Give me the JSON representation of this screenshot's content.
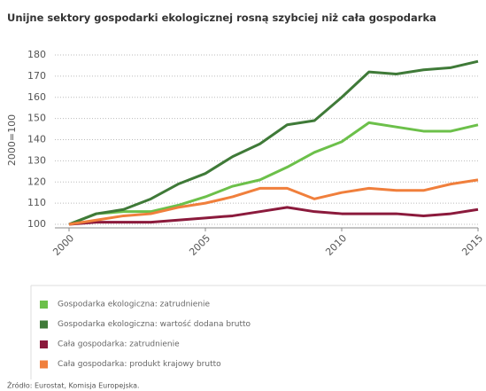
{
  "chart_data": {
    "type": "line",
    "title": "Unijne sektory gospodarki ekologicznej rosną szybciej niż cała gospodarka",
    "y_label": "2000=100",
    "x": [
      2000,
      2001,
      2002,
      2003,
      2004,
      2005,
      2006,
      2007,
      2008,
      2009,
      2010,
      2011,
      2012,
      2013,
      2014,
      2015
    ],
    "xlim": [
      2000,
      2015
    ],
    "xticks": [
      2000,
      2005,
      2010,
      2015
    ],
    "ylim": [
      100,
      180
    ],
    "yticks": [
      100,
      110,
      120,
      130,
      140,
      150,
      160,
      170,
      180
    ],
    "grid": true,
    "series": [
      {
        "name": "Gospodarka ekologiczna: zatrudnienie",
        "color": "#6cc04a",
        "values": [
          100,
          105,
          106,
          106,
          109,
          113,
          118,
          121,
          127,
          134,
          139,
          148,
          146,
          144,
          144,
          147
        ]
      },
      {
        "name": "Gospodarka ekologiczna: wartość dodana brutto",
        "color": "#3f7a38",
        "values": [
          100,
          105,
          107,
          112,
          119,
          124,
          132,
          138,
          147,
          149,
          160,
          172,
          171,
          173,
          174,
          177
        ]
      },
      {
        "name": "Cała gospodarka: zatrudnienie",
        "color": "#8b1a3c",
        "values": [
          100,
          101,
          101,
          101,
          102,
          103,
          104,
          106,
          108,
          106,
          105,
          105,
          105,
          104,
          105,
          107
        ]
      },
      {
        "name": "Cała gospodarka: produkt krajowy brutto",
        "color": "#f07f3c",
        "values": [
          100,
          102,
          104,
          105,
          108,
          110,
          113,
          117,
          117,
          112,
          115,
          117,
          116,
          116,
          119,
          121
        ]
      }
    ],
    "source": "Źródło: Eurostat, Komisja Europejska."
  }
}
